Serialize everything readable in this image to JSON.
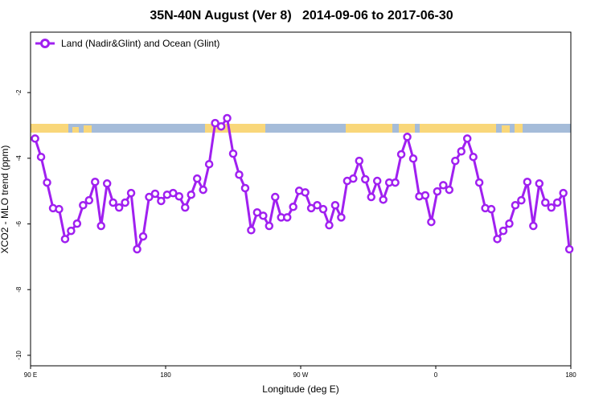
{
  "chart_data": {
    "type": "line",
    "title": "35N-40N August (Ver 8)   2014-09-06 to 2017-06-30",
    "x_label": "Longitude (deg E)",
    "y_label": "XCO2 - MLO trend (ppm)",
    "x": [
      93,
      97,
      101,
      105,
      109,
      113,
      117,
      121,
      125,
      129,
      133,
      137,
      141,
      145,
      149,
      153,
      157,
      161,
      165,
      169,
      173,
      177,
      181,
      185,
      189,
      193,
      197,
      201,
      205,
      209,
      213,
      217,
      221,
      225,
      229,
      233,
      237,
      241,
      245,
      249,
      253,
      257,
      261,
      265,
      269,
      273,
      277,
      281,
      285,
      289,
      293,
      297,
      301,
      305,
      309,
      313,
      317,
      321,
      325,
      329,
      333,
      337,
      341,
      345,
      349,
      353,
      357,
      361,
      365,
      369,
      373,
      377,
      381,
      385,
      389,
      393,
      397,
      401,
      405,
      409,
      413,
      417,
      421,
      425,
      429,
      433,
      437,
      441,
      445,
      449
    ],
    "series": [
      {
        "name": "Land (Nadir&Glint) and Ocean (Glint)",
        "color": "#a020f0",
        "values": [
          -3.4,
          -3.96,
          -4.74,
          -5.52,
          -5.55,
          -6.46,
          -6.21,
          -5.99,
          -5.43,
          -5.28,
          -4.72,
          -6.06,
          -4.77,
          -5.35,
          -5.5,
          -5.35,
          -5.06,
          -6.77,
          -6.38,
          -5.18,
          -5.08,
          -5.3,
          -5.11,
          -5.06,
          -5.16,
          -5.5,
          -5.11,
          -4.62,
          -4.96,
          -4.18,
          -2.93,
          -3.03,
          -2.78,
          -3.86,
          -4.5,
          -4.91,
          -6.19,
          -5.65,
          -5.75,
          -6.06,
          -5.18,
          -5.8,
          -5.8,
          -5.48,
          -4.99,
          -5.04,
          -5.52,
          -5.43,
          -5.55,
          -6.04,
          -5.43,
          -5.8,
          -4.69,
          -4.62,
          -4.08,
          -4.64,
          -5.18,
          -4.69,
          -5.26,
          -4.74,
          -4.74,
          -3.88,
          -3.35,
          -4.01,
          -5.16,
          -5.13,
          -5.94,
          -5.01,
          -4.82,
          -4.96,
          -4.08,
          -3.79,
          -3.4,
          -3.96,
          -4.74,
          -5.52,
          -5.55,
          -6.46,
          -6.21,
          -5.99,
          -5.43,
          -5.28,
          -4.72,
          -6.06,
          -4.77,
          -5.35,
          -5.5,
          -5.35,
          -5.06,
          -6.77
        ]
      }
    ],
    "xlim": [
      90,
      450
    ],
    "xticks": [
      {
        "value": 90,
        "label": "90 E"
      },
      180,
      {
        "value": 270,
        "label": "90 W"
      },
      {
        "value": 360,
        "label": "0"
      },
      {
        "value": 450,
        "label": "180"
      }
    ],
    "ylim": [
      -10.32,
      -0.16
    ],
    "yticks": [
      -10,
      -8,
      -6,
      -4,
      -2
    ],
    "grid": false,
    "legend": "top-left"
  }
}
